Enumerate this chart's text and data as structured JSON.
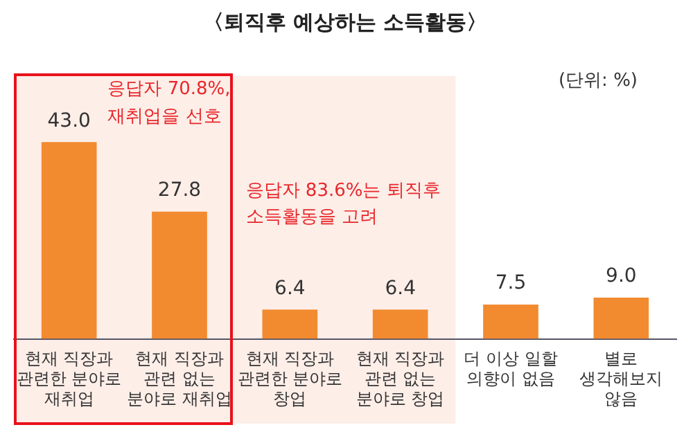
{
  "chart_data": {
    "type": "bar",
    "title": "〈퇴직후 예상하는 소득활동〉",
    "categories": [
      "현재 직장과\n관련한 분야로\n재취업",
      "현재 직장과\n관련 없는\n분야로 재취업",
      "현재 직장과\n관련한 분야로\n창업",
      "현재 직장과\n관련 없는\n분야로 창업",
      "더 이상 일할\n의향이 없음",
      "별로\n생각해보지\n않음"
    ],
    "values": [
      43.0,
      27.8,
      6.4,
      6.4,
      7.5,
      9.0
    ],
    "value_labels": [
      "43.0",
      "27.8",
      "6.4",
      "6.4",
      "7.5",
      "9.0"
    ],
    "color": "#f28a30",
    "tick_labels": "x",
    "grid": false,
    "bands": [
      {
        "axis": "x",
        "from": "현재 직장과\n관련한 분야로\n재취업",
        "to": "현재 직장과\n관련 없는\n분야로 창업",
        "label": "응답자 83.6%는 퇴직후\n소득활동을 고려",
        "color": "#fdeee8"
      }
    ],
    "annotations": [
      "응답자 70.8%,\n재취업을 선호",
      "(단위: %)"
    ]
  }
}
